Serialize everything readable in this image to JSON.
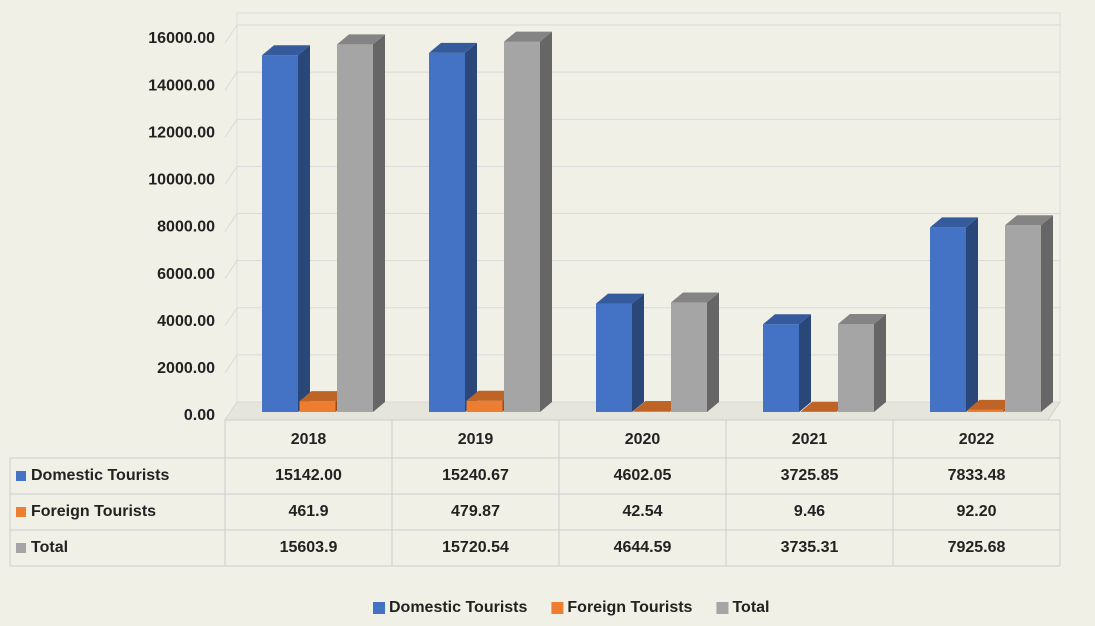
{
  "chart_data": {
    "type": "bar3d",
    "categories": [
      "2018",
      "2019",
      "2020",
      "2021",
      "2022"
    ],
    "series": [
      {
        "name": "Domestic Tourists",
        "color": "#4472c4",
        "values": [
          15142.0,
          15240.67,
          4602.05,
          3725.85,
          7833.48
        ],
        "value_labels": [
          "15142.00",
          "15240.67",
          "4602.05",
          "3725.85",
          "7833.48"
        ]
      },
      {
        "name": "Foreign Tourists",
        "color": "#ed7d31",
        "values": [
          461.9,
          479.87,
          42.54,
          9.46,
          92.2
        ],
        "value_labels": [
          "461.9",
          "479.87",
          "42.54",
          "9.46",
          "92.20"
        ]
      },
      {
        "name": "Total",
        "color": "#a5a5a5",
        "values": [
          15603.9,
          15720.54,
          4644.59,
          3735.31,
          7925.68
        ],
        "value_labels": [
          "15603.9",
          "15720.54",
          "4644.59",
          "3735.31",
          "7925.68"
        ]
      }
    ],
    "ylim": [
      0,
      16000
    ],
    "yticks": [
      {
        "value": 0,
        "label": "0.00"
      },
      {
        "value": 2000,
        "label": "2000.00"
      },
      {
        "value": 4000,
        "label": "4000.00"
      },
      {
        "value": 6000,
        "label": "6000.00"
      },
      {
        "value": 8000,
        "label": "8000.00"
      },
      {
        "value": 10000,
        "label": "10000.00"
      },
      {
        "value": 12000,
        "label": "12000.00"
      },
      {
        "value": 14000,
        "label": "14000.00"
      },
      {
        "value": 16000,
        "label": "16000.00"
      }
    ],
    "grid": true,
    "legend": "bottom"
  }
}
